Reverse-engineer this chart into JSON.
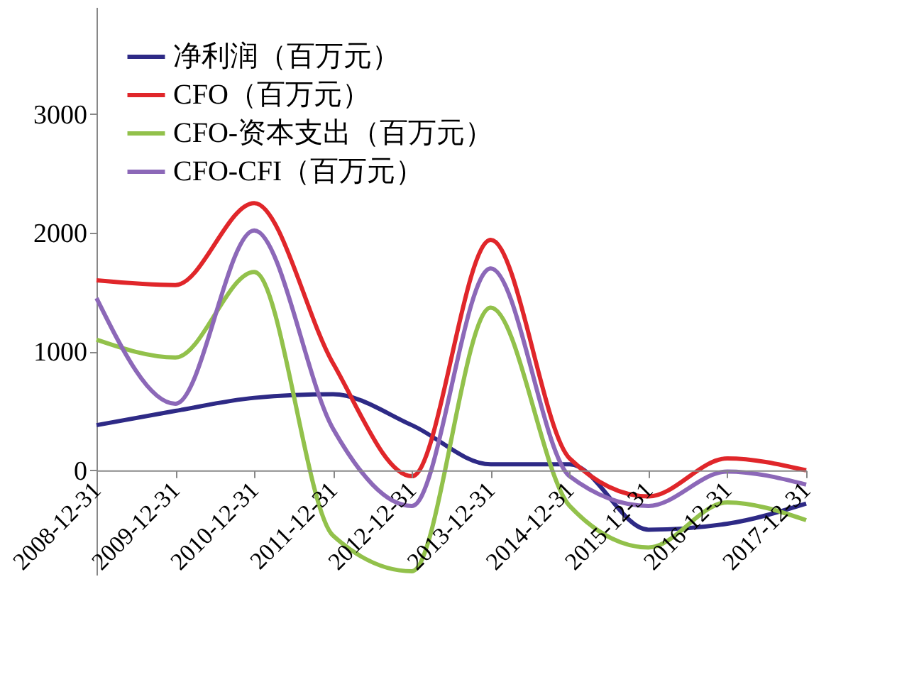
{
  "chart_data": {
    "type": "line",
    "categories": [
      "2008-12-31",
      "2009-12-31",
      "2010-12-31",
      "2011-12-31",
      "2012-12-31",
      "2013-12-31",
      "2014-12-31",
      "2015-12-31",
      "2016-12-31",
      "2017-12-31"
    ],
    "series": [
      {
        "name": "净利润（百万元）",
        "color": "#2e2a86",
        "values": [
          380,
          500,
          610,
          640,
          380,
          50,
          50,
          -500,
          -450,
          -280
        ]
      },
      {
        "name": "CFO（百万元）",
        "color": "#e0262a",
        "values": [
          1600,
          1560,
          2250,
          900,
          -50,
          1940,
          100,
          -220,
          100,
          0
        ]
      },
      {
        "name": "CFO-资本支出（百万元）",
        "color": "#92c14b",
        "values": [
          1100,
          950,
          1670,
          -550,
          -850,
          1370,
          -300,
          -650,
          -270,
          -420
        ]
      },
      {
        "name": "CFO-CFI（百万元）",
        "color": "#8c68b8",
        "values": [
          1450,
          560,
          2020,
          350,
          -300,
          1700,
          -50,
          -300,
          -10,
          -120
        ]
      }
    ],
    "ylim": [
      -880,
      3900
    ],
    "yticks": [
      0,
      1000,
      2000,
      3000
    ],
    "grid": false,
    "legend": "top left",
    "marker": "none",
    "line_style": "solid"
  }
}
